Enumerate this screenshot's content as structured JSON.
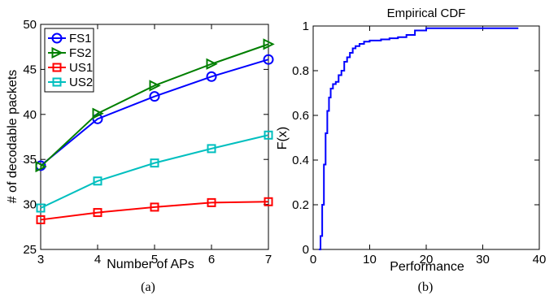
{
  "chart_data": [
    {
      "type": "line",
      "caption": "(a)",
      "title": "",
      "xlabel": "Number of APs",
      "ylabel": "# of decodable packets",
      "xlim": [
        3,
        7
      ],
      "ylim": [
        25,
        50
      ],
      "xticks": [
        "3",
        "4",
        "5",
        "6",
        "7"
      ],
      "yticks": [
        "25",
        "30",
        "35",
        "40",
        "45",
        "50"
      ],
      "grid": false,
      "legend_position": "top-left",
      "x": [
        3,
        4,
        5,
        6,
        7
      ],
      "series": [
        {
          "name": "FS1",
          "color": "#0000ff",
          "marker": "circle",
          "values": [
            34.3,
            39.5,
            42.0,
            44.2,
            46.1
          ]
        },
        {
          "name": "FS2",
          "color": "#007f00",
          "marker": "triangle-right",
          "values": [
            34.2,
            40.1,
            43.2,
            45.6,
            47.8
          ]
        },
        {
          "name": "US1",
          "color": "#ff0000",
          "marker": "square",
          "values": [
            28.3,
            29.1,
            29.7,
            30.2,
            30.3
          ]
        },
        {
          "name": "US2",
          "color": "#00bfbf",
          "marker": "square",
          "values": [
            29.6,
            32.6,
            34.6,
            36.2,
            37.7
          ]
        }
      ]
    },
    {
      "type": "line",
      "caption": "(b)",
      "title": "Empirical CDF",
      "xlabel": "Performance",
      "ylabel": "F(x)",
      "xlim": [
        0,
        40
      ],
      "ylim": [
        0,
        1
      ],
      "xticks": [
        "0",
        "10",
        "20",
        "30",
        "40"
      ],
      "yticks": [
        "0",
        "0.2",
        "0.4",
        "0.6",
        "0.8",
        "1"
      ],
      "grid": false,
      "series": [
        {
          "color": "#0000ff",
          "x": [
            1.0,
            1.3,
            1.6,
            1.9,
            2.2,
            2.5,
            2.8,
            3.1,
            3.5,
            4.0,
            4.5,
            5.0,
            5.5,
            6.0,
            6.5,
            7.0,
            7.5,
            8.2,
            9.0,
            10.0,
            12.0,
            13.5,
            15.0,
            16.5,
            18.0,
            20.0,
            25.0,
            30.0,
            36.3
          ],
          "y": [
            0.0,
            0.06,
            0.2,
            0.38,
            0.52,
            0.62,
            0.68,
            0.72,
            0.74,
            0.75,
            0.78,
            0.8,
            0.84,
            0.86,
            0.88,
            0.9,
            0.91,
            0.92,
            0.93,
            0.935,
            0.94,
            0.945,
            0.95,
            0.96,
            0.98,
            0.99,
            0.99,
            0.99,
            0.99
          ]
        }
      ]
    }
  ]
}
